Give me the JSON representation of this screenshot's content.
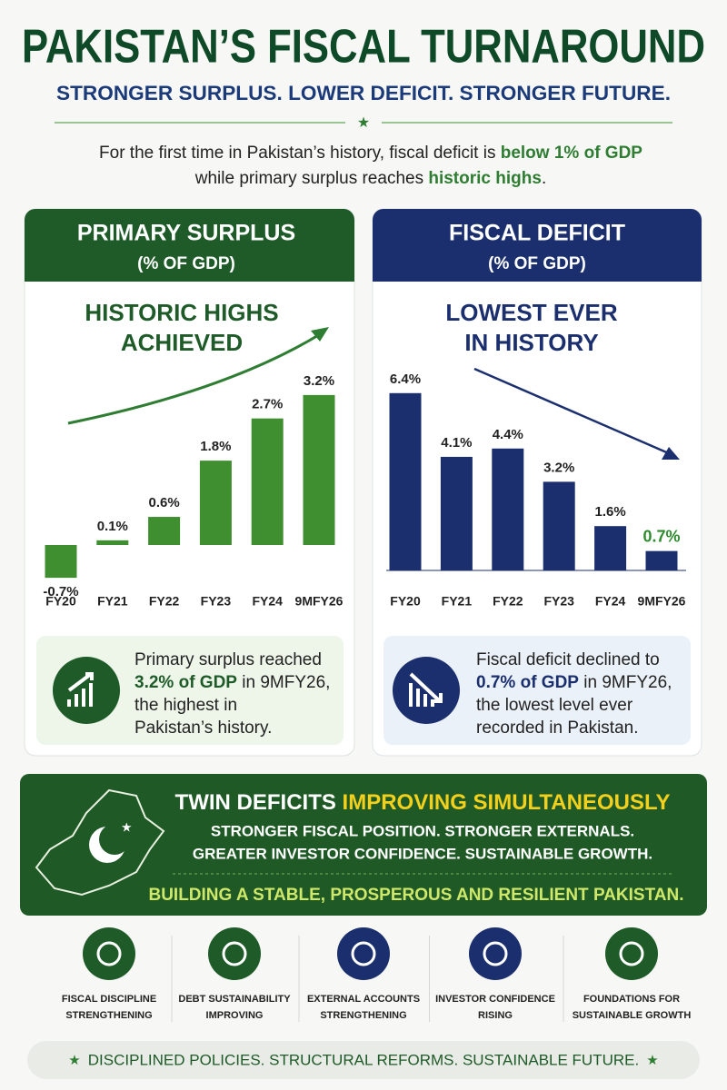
{
  "header": {
    "title": "PAKISTAN’S FISCAL TURNAROUND",
    "subtitle": "STRONGER SURPLUS. LOWER DEFICIT. STRONGER FUTURE."
  },
  "intro": {
    "line1": {
      "text": "For the first time in Pakistan’s history, fiscal deficit is ",
      "bold": "below 1% of GDP"
    },
    "line2": {
      "text": "while primary surplus reaches ",
      "bold": "historic highs",
      "end": "."
    }
  },
  "chart_data": [
    {
      "type": "bar",
      "title": "PRIMARY SURPLUS",
      "subtitle": "(% OF GDP)",
      "annotation": [
        "HISTORIC HIGHS",
        "ACHIEVED"
      ],
      "categories": [
        "FY20",
        "FY21",
        "FY22",
        "FY23",
        "FY24",
        "9MFY26"
      ],
      "values": [
        -0.7,
        0.1,
        0.6,
        1.8,
        2.7,
        3.2
      ],
      "value_labels": [
        "-0.7%",
        "0.1%",
        "0.6%",
        "1.8%",
        "2.7%",
        "3.2%"
      ],
      "color": "#3f8f31"
    },
    {
      "type": "bar",
      "title": "FISCAL DEFICIT",
      "subtitle": "(% OF GDP)",
      "annotation": [
        "LOWEST EVER",
        "IN HISTORY"
      ],
      "categories": [
        "FY20",
        "FY21",
        "FY22",
        "FY23",
        "FY24",
        "9MFY26"
      ],
      "values": [
        6.4,
        4.1,
        4.4,
        3.2,
        1.6,
        0.7
      ],
      "value_labels": [
        "6.4%",
        "4.1%",
        "4.4%",
        "3.2%",
        "1.6%",
        "0.7%"
      ],
      "color": "#1b2f6e",
      "value_label_colors": [
        "#222222",
        "#222222",
        "#222222",
        "#222222",
        "#222222",
        "#2e8b2e"
      ]
    }
  ],
  "info": [
    {
      "line1": "Primary surplus reached",
      "line2": {
        "bold": "3.2% of GDP",
        "text": " in 9MFY26,"
      },
      "line3": "the highest in",
      "line4": "Pakistan’s history."
    },
    {
      "line1": "Fiscal deficit declined to",
      "line2": {
        "bold": "0.7% of GDP",
        "text": " in 9MFY26,"
      },
      "line3": "the lowest level ever",
      "line4": "recorded in Pakistan."
    }
  ],
  "banner": {
    "title": "TWIN DEFICITS ",
    "highlight": "IMPROVING SIMULTANEOUSLY",
    "line1": "STRONGER FISCAL POSITION. STRONGER EXTERNALS.",
    "line2": "GREATER INVESTOR CONFIDENCE. SUSTAINABLE GROWTH.",
    "tagline": "BUILDING A STABLE, PROSPEROUS AND RESILIENT PAKISTAN."
  },
  "pillars": [
    [
      "FISCAL DISCIPLINE",
      "STRENGTHENING"
    ],
    [
      "DEBT SUSTAINABILITY",
      "IMPROVING"
    ],
    [
      "EXTERNAL ACCOUNTS",
      "STRENGTHENING"
    ],
    [
      "INVESTOR CONFIDENCE",
      "RISING"
    ],
    [
      "FOUNDATIONS FOR",
      "SUSTAINABLE GROWTH"
    ]
  ],
  "footer": "DISCIPLINED POLICIES. STRUCTURAL REFORMS. SUSTAINABLE FUTURE."
}
